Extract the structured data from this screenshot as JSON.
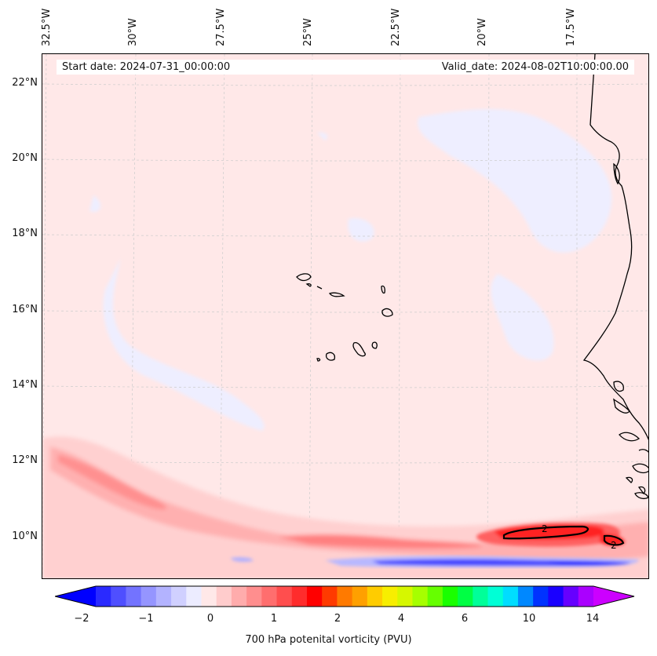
{
  "map": {
    "header": {
      "start_date": "Start date: 2024-07-31_00:00:00",
      "valid_date": "Valid_date: 2024-08-02T10:00:00.00"
    },
    "lon_labels": [
      "32.5°W",
      "30°W",
      "27.5°W",
      "25°W",
      "22.5°W",
      "20°W",
      "17.5°W"
    ],
    "lat_labels": [
      "22°N",
      "20°N",
      "18°N",
      "16°N",
      "14°N",
      "12°N",
      "10°N"
    ],
    "contour_labels": [
      "2",
      "2"
    ],
    "colors": {
      "background_field": "#ffe8e8",
      "coast": "#000000",
      "negative_band": "#0a12ff",
      "positive_core": "#ff2020"
    }
  },
  "colorbar": {
    "tick_labels": [
      "−2",
      "−1",
      "0",
      "1",
      "2",
      "4",
      "6",
      "10",
      "14"
    ],
    "label": "700 hPa potenital vorticity (PVU)",
    "colors": [
      "#0000ff",
      "#2a2aff",
      "#4f4fff",
      "#7373ff",
      "#9595ff",
      "#b3b3ff",
      "#d0d0ff",
      "#ececff",
      "#ffe8e8",
      "#ffcccc",
      "#ffacac",
      "#ff8e8e",
      "#ff6e6e",
      "#ff4e4e",
      "#ff2c2c",
      "#ff0000",
      "#ff3a00",
      "#ff7a00",
      "#ffa000",
      "#ffcc00",
      "#f7ee00",
      "#d6f700",
      "#a6ff00",
      "#66ff00",
      "#1aff00",
      "#00ff44",
      "#00ff99",
      "#00ffd6",
      "#00ddff",
      "#0088ff",
      "#0033ff",
      "#1a00ff",
      "#6600ff",
      "#aa00ff",
      "#cc00ff"
    ]
  }
}
